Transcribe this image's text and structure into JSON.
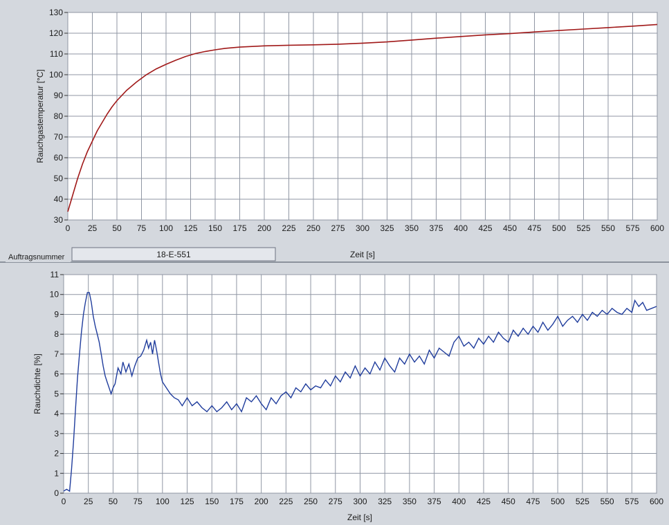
{
  "auftrag": {
    "label": "Auftragsnummer",
    "value": "18-E-551"
  },
  "colors": {
    "panel_bg": "#d4d8de",
    "plot_bg": "#ffffff",
    "grid": "#8f96a3",
    "temperature_line": "#a01818",
    "density_line": "#1f3c9c"
  },
  "chart_data": [
    {
      "type": "line",
      "ylabel": "Rauchgastemperatur [°C]",
      "xlabel": "Zeit [s]",
      "xlim": [
        0,
        600
      ],
      "ylim": [
        30,
        130
      ],
      "xticks": [
        0,
        25,
        50,
        75,
        100,
        125,
        150,
        175,
        200,
        225,
        250,
        275,
        300,
        325,
        350,
        375,
        400,
        425,
        450,
        475,
        500,
        525,
        550,
        575,
        600
      ],
      "yticks": [
        30,
        40,
        50,
        60,
        70,
        80,
        90,
        100,
        110,
        120,
        130
      ],
      "grid": true,
      "series": [
        {
          "x": [
            0,
            5,
            10,
            15,
            20,
            25,
            30,
            35,
            40,
            45,
            50,
            60,
            70,
            80,
            90,
            100,
            110,
            120,
            130,
            140,
            150,
            160,
            175,
            200,
            225,
            250,
            275,
            300,
            325,
            350,
            375,
            400,
            425,
            450,
            475,
            500,
            525,
            550,
            575,
            600
          ],
          "values": [
            34,
            42,
            50,
            57,
            63,
            68,
            73,
            77,
            81,
            84.5,
            87.5,
            92.5,
            96.5,
            100,
            102.8,
            105,
            107,
            108.8,
            110.2,
            111.2,
            112,
            112.7,
            113.3,
            113.9,
            114.2,
            114.4,
            114.7,
            115.2,
            115.8,
            116.7,
            117.6,
            118.4,
            119.2,
            119.8,
            120.6,
            121.3,
            122.0,
            122.7,
            123.4,
            124.2
          ]
        }
      ]
    },
    {
      "type": "line",
      "ylabel": "Rauchdichte [%]",
      "xlabel": "Zeit [s]",
      "xlim": [
        0,
        600
      ],
      "ylim": [
        0,
        11
      ],
      "xticks": [
        0,
        25,
        50,
        75,
        100,
        125,
        150,
        175,
        200,
        225,
        250,
        275,
        300,
        325,
        350,
        375,
        400,
        425,
        450,
        475,
        500,
        525,
        550,
        575,
        600
      ],
      "yticks": [
        0,
        1,
        2,
        3,
        4,
        5,
        6,
        7,
        8,
        9,
        10,
        11
      ],
      "grid": true,
      "series": [
        {
          "x": [
            0,
            3,
            6,
            8,
            10,
            12,
            14,
            16,
            18,
            20,
            22,
            24,
            26,
            28,
            30,
            32,
            34,
            36,
            38,
            40,
            42,
            44,
            46,
            48,
            50,
            52,
            55,
            58,
            60,
            63,
            66,
            69,
            72,
            75,
            78,
            81,
            84,
            86,
            88,
            90,
            92,
            94,
            96,
            98,
            100,
            104,
            108,
            112,
            116,
            120,
            125,
            130,
            135,
            140,
            145,
            150,
            155,
            160,
            165,
            170,
            175,
            180,
            185,
            190,
            195,
            200,
            205,
            210,
            215,
            220,
            225,
            230,
            235,
            240,
            245,
            250,
            255,
            260,
            265,
            270,
            275,
            280,
            285,
            290,
            295,
            300,
            305,
            310,
            315,
            320,
            325,
            330,
            335,
            340,
            345,
            350,
            355,
            360,
            365,
            370,
            375,
            380,
            385,
            390,
            395,
            400,
            405,
            410,
            415,
            420,
            425,
            430,
            435,
            440,
            445,
            450,
            455,
            460,
            465,
            470,
            475,
            480,
            485,
            490,
            495,
            500,
            505,
            510,
            515,
            520,
            525,
            530,
            535,
            540,
            545,
            550,
            555,
            560,
            565,
            570,
            575,
            578,
            582,
            586,
            590,
            595,
            600
          ],
          "values": [
            0.1,
            0.2,
            0.1,
            1.2,
            2.6,
            4.2,
            5.8,
            7.0,
            8.1,
            9.0,
            9.6,
            10.1,
            10.1,
            9.6,
            8.9,
            8.4,
            8.0,
            7.6,
            7.0,
            6.4,
            5.9,
            5.6,
            5.3,
            5.0,
            5.3,
            5.5,
            6.3,
            6.0,
            6.6,
            6.1,
            6.5,
            5.9,
            6.4,
            6.8,
            6.9,
            7.2,
            7.7,
            7.3,
            7.6,
            7.0,
            7.7,
            7.2,
            6.6,
            6.0,
            5.6,
            5.3,
            5.0,
            4.8,
            4.7,
            4.4,
            4.8,
            4.4,
            4.6,
            4.3,
            4.1,
            4.4,
            4.1,
            4.3,
            4.6,
            4.2,
            4.5,
            4.1,
            4.8,
            4.6,
            4.9,
            4.5,
            4.2,
            4.8,
            4.5,
            4.9,
            5.1,
            4.8,
            5.3,
            5.1,
            5.5,
            5.2,
            5.4,
            5.3,
            5.7,
            5.4,
            5.9,
            5.6,
            6.1,
            5.8,
            6.4,
            5.9,
            6.3,
            6.0,
            6.6,
            6.2,
            6.8,
            6.4,
            6.1,
            6.8,
            6.5,
            7.0,
            6.6,
            6.9,
            6.5,
            7.2,
            6.8,
            7.3,
            7.1,
            6.9,
            7.6,
            7.9,
            7.4,
            7.6,
            7.3,
            7.8,
            7.5,
            7.9,
            7.6,
            8.1,
            7.8,
            7.6,
            8.2,
            7.9,
            8.3,
            8.0,
            8.4,
            8.1,
            8.6,
            8.2,
            8.5,
            8.9,
            8.4,
            8.7,
            8.9,
            8.6,
            9.0,
            8.7,
            9.1,
            8.9,
            9.2,
            9.0,
            9.3,
            9.1,
            9.0,
            9.3,
            9.1,
            9.7,
            9.4,
            9.6,
            9.2,
            9.3,
            9.4
          ]
        }
      ]
    }
  ]
}
